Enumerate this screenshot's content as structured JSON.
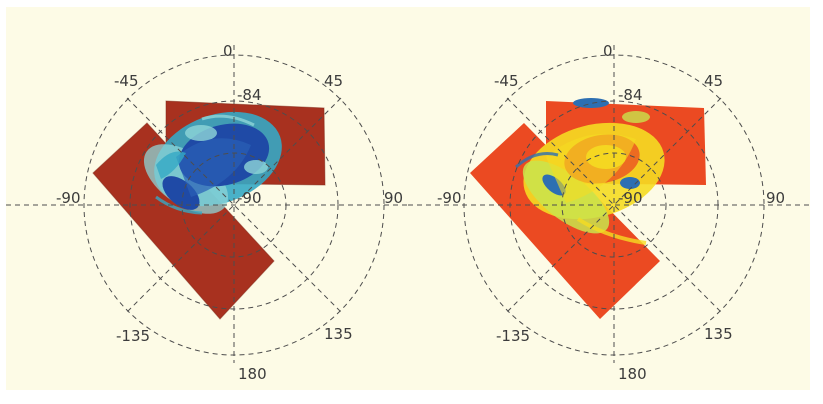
{
  "panels": [
    {
      "name": "left",
      "palette": {
        "background": "#a8311f",
        "edge": "#35a9c4",
        "core": "#1f4aa6",
        "pale": "#8ed6d8"
      },
      "angle_labels": [
        "0",
        "45",
        "90",
        "135",
        "180",
        "-135",
        "-90",
        "-45"
      ],
      "latitude_labels": [
        "-84",
        "-90"
      ]
    },
    {
      "name": "right",
      "palette": {
        "background": "#eb4a22",
        "edge": "#f5dc22",
        "core": "#2d6fb2",
        "pale": "#c9e44c"
      },
      "angle_labels": [
        "0",
        "45",
        "90",
        "135",
        "180",
        "-135",
        "-90",
        "-45"
      ],
      "latitude_labels": [
        "-84",
        "-90"
      ]
    }
  ],
  "colors": {
    "frame_background": "#fdfbe6",
    "grid": "#4d4d4d",
    "text": "#3c3c3c"
  }
}
